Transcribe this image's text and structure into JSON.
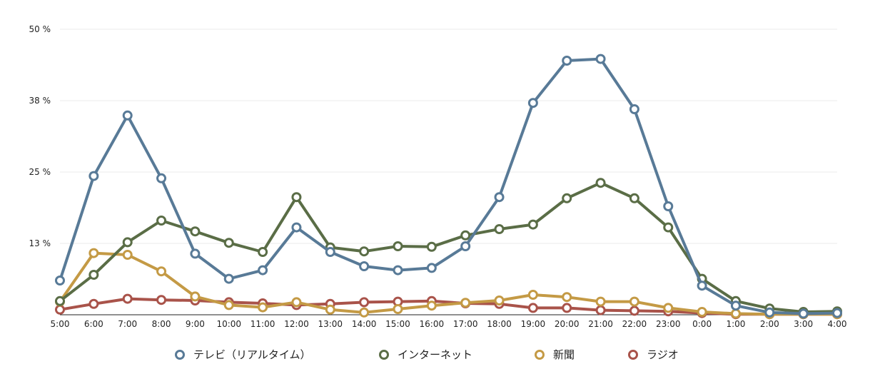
{
  "chart_data": {
    "type": "line",
    "title": "",
    "xlabel": "",
    "ylabel": "",
    "categories": [
      "5:00",
      "6:00",
      "7:00",
      "8:00",
      "9:00",
      "10:00",
      "11:00",
      "12:00",
      "13:00",
      "14:00",
      "15:00",
      "16:00",
      "17:00",
      "18:00",
      "19:00",
      "20:00",
      "21:00",
      "22:00",
      "23:00",
      "0:00",
      "1:00",
      "2:00",
      "3:00",
      "4:00"
    ],
    "ylim": [
      0,
      50
    ],
    "yticks": [
      {
        "value": 50,
        "label": "50 %"
      },
      {
        "value": 37.5,
        "label": "38 %"
      },
      {
        "value": 25,
        "label": "25 %"
      },
      {
        "value": 12.5,
        "label": "13 %"
      }
    ],
    "grid": true,
    "legend_position": "bottom",
    "series": [
      {
        "name": "テレビ（リアルタイム）",
        "color": "#587A97",
        "values": [
          6.0,
          24.3,
          34.9,
          23.9,
          10.7,
          6.3,
          7.8,
          15.3,
          11.0,
          8.5,
          7.8,
          8.2,
          12.0,
          20.6,
          37.1,
          44.5,
          44.8,
          36.0,
          19.0,
          5.1,
          1.6,
          0.4,
          0.2,
          0.3
        ]
      },
      {
        "name": "インターネット",
        "color": "#5A6D46",
        "values": [
          2.4,
          7.0,
          12.7,
          16.5,
          14.6,
          12.6,
          11.0,
          20.6,
          11.8,
          11.1,
          12.0,
          11.9,
          13.9,
          15.0,
          15.8,
          20.4,
          23.1,
          20.4,
          15.3,
          6.3,
          2.4,
          1.1,
          0.5,
          0.6
        ]
      },
      {
        "name": "新聞",
        "color": "#C49A45",
        "values": [
          2.3,
          10.8,
          10.5,
          7.6,
          3.2,
          1.7,
          1.3,
          2.2,
          0.9,
          0.4,
          1.0,
          1.6,
          2.1,
          2.5,
          3.5,
          3.1,
          2.3,
          2.3,
          1.2,
          0.5,
          0.2,
          0.1,
          0.1,
          0.1
        ]
      },
      {
        "name": "ラジオ",
        "color": "#A9534A",
        "values": [
          0.9,
          1.9,
          2.8,
          2.6,
          2.5,
          2.2,
          2.0,
          1.7,
          1.9,
          2.2,
          2.3,
          2.4,
          2.0,
          1.9,
          1.2,
          1.2,
          0.8,
          0.7,
          0.6,
          0.3,
          0.1,
          0.1,
          0.1,
          0.1
        ]
      }
    ]
  }
}
